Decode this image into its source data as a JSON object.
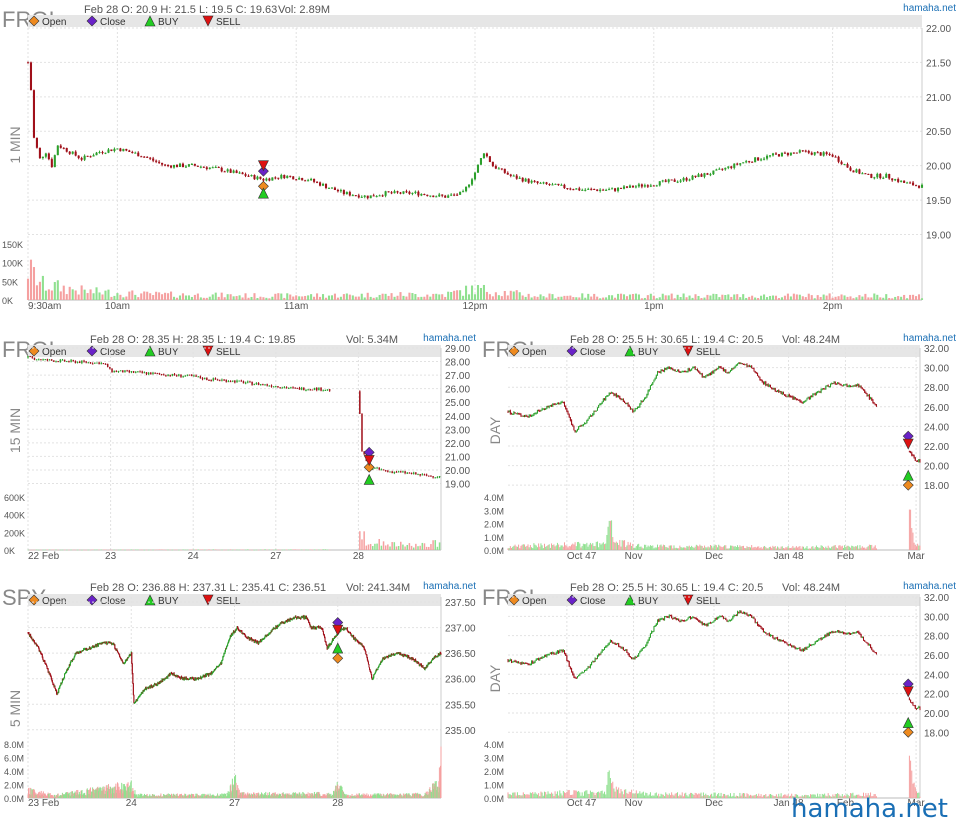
{
  "watermark": "hamaha.net",
  "legend_labels": {
    "open": "Open",
    "close": "Close",
    "buy": "BUY",
    "sell": "SELL"
  },
  "colors": {
    "up": "#2ca02c",
    "down": "#a0101a",
    "vol_up": "#8fe08f",
    "vol_down": "#f5a0a0",
    "open": "#ee8a1f",
    "close": "#6a22c8",
    "buy": "#22cc22",
    "sell": "#dd1111",
    "link": "#1a6fb5"
  },
  "chart_data": [
    {
      "type": "candlestick",
      "symbol": "FRGI",
      "timeframe": "1 MIN",
      "info": {
        "date": "Feb 28",
        "open": "O: 20.9",
        "high": "H: 21.5",
        "low": "L: 19.5",
        "close": "C: 19.63",
        "volume": "Vol: 2.89M"
      },
      "source": "hamaha.net",
      "price_ticks": [
        "22.00",
        "21.50",
        "21.00",
        "20.50",
        "20.00",
        "19.50",
        "19.00"
      ],
      "price_range": [
        18.92,
        22.0
      ],
      "x_ticks": [
        "9:30am",
        "10am",
        "11am",
        "12pm",
        "1pm",
        "2pm"
      ],
      "x_tick_pos": [
        0,
        30,
        90,
        150,
        210,
        270
      ],
      "x_range": [
        0,
        300
      ],
      "volume_ticks": [
        "150K",
        "100K",
        "50K",
        "0K"
      ],
      "volume_max": 150000,
      "price_path": [
        [
          0,
          21.5
        ],
        [
          1,
          21.1
        ],
        [
          2,
          20.4
        ],
        [
          4,
          20.1
        ],
        [
          6,
          20.2
        ],
        [
          8,
          20.0
        ],
        [
          10,
          20.3
        ],
        [
          14,
          20.2
        ],
        [
          18,
          20.1
        ],
        [
          24,
          20.2
        ],
        [
          30,
          20.25
        ],
        [
          38,
          20.15
        ],
        [
          46,
          20.0
        ],
        [
          56,
          20.0
        ],
        [
          64,
          19.95
        ],
        [
          74,
          19.85
        ],
        [
          79,
          19.8
        ],
        [
          86,
          19.85
        ],
        [
          94,
          19.8
        ],
        [
          100,
          19.7
        ],
        [
          106,
          19.6
        ],
        [
          114,
          19.55
        ],
        [
          120,
          19.6
        ],
        [
          130,
          19.6
        ],
        [
          140,
          19.55
        ],
        [
          146,
          19.6
        ],
        [
          150,
          19.9
        ],
        [
          153,
          20.2
        ],
        [
          156,
          20.0
        ],
        [
          162,
          19.85
        ],
        [
          170,
          19.75
        ],
        [
          178,
          19.7
        ],
        [
          186,
          19.65
        ],
        [
          196,
          19.65
        ],
        [
          204,
          19.7
        ],
        [
          212,
          19.75
        ],
        [
          220,
          19.8
        ],
        [
          230,
          19.9
        ],
        [
          240,
          20.05
        ],
        [
          250,
          20.15
        ],
        [
          260,
          20.2
        ],
        [
          270,
          20.15
        ],
        [
          276,
          19.95
        ],
        [
          282,
          19.85
        ],
        [
          288,
          19.85
        ],
        [
          294,
          19.75
        ],
        [
          300,
          19.7
        ]
      ],
      "volume_profile": [
        [
          0,
          110000
        ],
        [
          5,
          55000
        ],
        [
          20,
          30000
        ],
        [
          40,
          20000
        ],
        [
          80,
          15000
        ],
        [
          140,
          20000
        ],
        [
          150,
          40000
        ],
        [
          170,
          15000
        ],
        [
          280,
          15000
        ],
        [
          300,
          15000
        ]
      ],
      "markers": [
        {
          "x": 79,
          "open": 19.7,
          "close": 19.92,
          "buy": 19.6,
          "sell": 20.0
        }
      ]
    },
    {
      "type": "candlestick",
      "symbol": "FRGI",
      "timeframe": "15 MIN",
      "info": {
        "date": "Feb 28",
        "open": "O: 28.35",
        "high": "H: 28.35",
        "low": "L: 19.4",
        "close": "C: 19.85",
        "volume": "Vol: 5.34M"
      },
      "source": "hamaha.net",
      "price_ticks": [
        "29.00",
        "28.00",
        "27.00",
        "26.00",
        "25.00",
        "24.00",
        "23.00",
        "22.00",
        "21.00",
        "20.00",
        "19.00"
      ],
      "price_range": [
        18.3,
        29.0
      ],
      "x_ticks": [
        "22 Feb",
        "23",
        "24",
        "27",
        "28"
      ],
      "x_tick_pos": [
        0,
        23,
        46,
        69,
        92
      ],
      "x_range": [
        0,
        115
      ],
      "volume_ticks": [
        "600K",
        "400K",
        "200K",
        "0K"
      ],
      "volume_max": 700000,
      "price_path": [
        [
          0,
          28.3
        ],
        [
          5,
          28.1
        ],
        [
          12,
          28.0
        ],
        [
          20,
          27.9
        ],
        [
          22,
          27.7
        ],
        [
          23,
          27.3
        ],
        [
          30,
          27.2
        ],
        [
          40,
          27.0
        ],
        [
          46,
          26.9
        ],
        [
          50,
          26.7
        ],
        [
          56,
          26.6
        ],
        [
          62,
          26.4
        ],
        [
          69,
          26.2
        ],
        [
          74,
          26.0
        ],
        [
          80,
          26.0
        ],
        [
          84,
          25.9
        ],
        [
          92,
          25.8
        ],
        [
          93,
          21.4
        ],
        [
          95,
          20.2
        ],
        [
          100,
          19.9
        ],
        [
          105,
          19.8
        ],
        [
          110,
          19.6
        ],
        [
          115,
          19.5
        ]
      ],
      "gap": [
        84,
        92
      ],
      "volume_profile": [
        [
          0,
          5000
        ],
        [
          84,
          8000
        ],
        [
          92,
          600000
        ],
        [
          94,
          180000
        ],
        [
          100,
          100000
        ],
        [
          110,
          80000
        ],
        [
          114,
          120000
        ],
        [
          115,
          130000
        ]
      ],
      "markers": [
        {
          "x": 95,
          "open": 20.2,
          "close": 21.3,
          "buy": 19.3,
          "sell": 20.7
        }
      ]
    },
    {
      "type": "candlestick",
      "symbol": "FRGI",
      "timeframe": "DAY",
      "info": {
        "date": "Feb 28",
        "open": "O: 25.5",
        "high": "H: 30.65",
        "low": "L: 19.4",
        "close": "C: 20.5",
        "volume": "Vol: 48.24M"
      },
      "source": "hamaha.net",
      "price_ticks": [
        "32.00",
        "30.00",
        "28.00",
        "26.00",
        "24.00",
        "22.00",
        "20.00",
        "18.00"
      ],
      "price_range": [
        17.2,
        32.0
      ],
      "x_ticks": [
        "Oct 47",
        "Nov",
        "Dec",
        "Jan 48",
        "Feb",
        "Mar"
      ],
      "x_tick_pos": [
        30,
        64,
        105,
        143,
        172,
        208
      ],
      "x_range": [
        0,
        210
      ],
      "volume_ticks": [
        "4.0M",
        "3.0M",
        "2.0M",
        "1.0M",
        "0.0M"
      ],
      "volume_max": 4200000,
      "price_path": [
        [
          0,
          25.5
        ],
        [
          10,
          25.0
        ],
        [
          20,
          26.0
        ],
        [
          28,
          26.5
        ],
        [
          34,
          23.5
        ],
        [
          40,
          24.5
        ],
        [
          46,
          26.0
        ],
        [
          52,
          27.5
        ],
        [
          58,
          26.8
        ],
        [
          64,
          25.5
        ],
        [
          70,
          27.0
        ],
        [
          76,
          29.5
        ],
        [
          82,
          30.0
        ],
        [
          88,
          29.5
        ],
        [
          95,
          30.0
        ],
        [
          100,
          29.0
        ],
        [
          108,
          30.0
        ],
        [
          112,
          29.5
        ],
        [
          118,
          30.5
        ],
        [
          124,
          30.0
        ],
        [
          130,
          28.5
        ],
        [
          138,
          27.5
        ],
        [
          144,
          27.0
        ],
        [
          150,
          26.5
        ],
        [
          158,
          27.5
        ],
        [
          166,
          28.5
        ],
        [
          172,
          28.2
        ],
        [
          178,
          28.3
        ],
        [
          184,
          27.0
        ],
        [
          188,
          26.0
        ],
        [
          200,
          25.5
        ],
        [
          204,
          21.5
        ],
        [
          208,
          20.5
        ]
      ],
      "gap": [
        188,
        204
      ],
      "volume_profile": [
        [
          0,
          400000
        ],
        [
          50,
          600000
        ],
        [
          52,
          3100000
        ],
        [
          54,
          800000
        ],
        [
          70,
          400000
        ],
        [
          150,
          300000
        ],
        [
          200,
          400000
        ],
        [
          202,
          1200000
        ],
        [
          204,
          3600000
        ],
        [
          208,
          500000
        ],
        [
          210,
          300000
        ]
      ],
      "markers": [
        {
          "x": 204,
          "open": 18.0,
          "close": 23.0,
          "buy": 19.0,
          "sell": 22.2
        }
      ]
    },
    {
      "type": "candlestick",
      "symbol": "SPY",
      "timeframe": "5 MIN",
      "info": {
        "date": "Feb 28",
        "open": "O: 236.88",
        "high": "H: 237.31",
        "low": "L: 235.41",
        "close": "C: 236.51",
        "volume": "Vol: 241.34M"
      },
      "source": "hamaha.net",
      "price_ticks": [
        "237.50",
        "237.00",
        "236.50",
        "236.00",
        "235.50",
        "235.00"
      ],
      "price_range": [
        234.8,
        237.6
      ],
      "x_ticks": [
        "23 Feb",
        "24",
        "27",
        "28"
      ],
      "x_tick_pos": [
        0,
        78,
        156,
        234
      ],
      "x_range": [
        0,
        312
      ],
      "volume_ticks": [
        "8.0M",
        "6.0M",
        "4.0M",
        "2.0M",
        "0.0M"
      ],
      "volume_max": 8500000,
      "price_path": [
        [
          0,
          236.9
        ],
        [
          8,
          236.6
        ],
        [
          16,
          236.1
        ],
        [
          22,
          235.7
        ],
        [
          28,
          236.1
        ],
        [
          36,
          236.5
        ],
        [
          46,
          236.6
        ],
        [
          56,
          236.7
        ],
        [
          64,
          236.7
        ],
        [
          72,
          236.3
        ],
        [
          78,
          236.5
        ],
        [
          80,
          235.5
        ],
        [
          88,
          235.8
        ],
        [
          98,
          235.9
        ],
        [
          108,
          236.1
        ],
        [
          118,
          236.0
        ],
        [
          128,
          236.0
        ],
        [
          138,
          236.1
        ],
        [
          146,
          236.3
        ],
        [
          152,
          236.8
        ],
        [
          158,
          237.0
        ],
        [
          166,
          236.8
        ],
        [
          174,
          236.7
        ],
        [
          182,
          236.9
        ],
        [
          192,
          237.1
        ],
        [
          202,
          237.2
        ],
        [
          210,
          237.2
        ],
        [
          214,
          237.0
        ],
        [
          222,
          237.0
        ],
        [
          226,
          236.6
        ],
        [
          234,
          236.9
        ],
        [
          240,
          237.0
        ],
        [
          246,
          236.8
        ],
        [
          254,
          236.6
        ],
        [
          260,
          236.0
        ],
        [
          268,
          236.4
        ],
        [
          280,
          236.5
        ],
        [
          290,
          236.4
        ],
        [
          300,
          236.2
        ],
        [
          306,
          236.4
        ],
        [
          312,
          236.5
        ]
      ],
      "volume_profile": [
        [
          0,
          1500000
        ],
        [
          20,
          500000
        ],
        [
          78,
          2400000
        ],
        [
          82,
          600000
        ],
        [
          150,
          600000
        ],
        [
          156,
          3800000
        ],
        [
          160,
          800000
        ],
        [
          230,
          800000
        ],
        [
          234,
          2600000
        ],
        [
          240,
          600000
        ],
        [
          300,
          700000
        ],
        [
          310,
          3000000
        ],
        [
          312,
          6800000
        ]
      ],
      "markers": [
        {
          "x": 234,
          "open": 236.4,
          "close": 237.1,
          "buy": 236.6,
          "sell": 236.95
        }
      ]
    },
    {
      "type": "candlestick",
      "symbol": "FRGI",
      "timeframe": "DAY",
      "info": {
        "date": "Feb 28",
        "open": "O: 25.5",
        "high": "H: 30.65",
        "low": "L: 19.4",
        "close": "C: 20.5",
        "volume": "Vol: 48.24M"
      },
      "source": "hamaha.net",
      "price_ticks": [
        "32.00",
        "30.00",
        "28.00",
        "26.00",
        "24.00",
        "22.00",
        "20.00",
        "18.00"
      ],
      "price_range": [
        17.2,
        32.0
      ],
      "x_ticks": [
        "Oct 47",
        "Nov",
        "Dec",
        "Jan 48",
        "Feb",
        "Mar"
      ],
      "x_tick_pos": [
        30,
        64,
        105,
        143,
        172,
        208
      ],
      "x_range": [
        0,
        210
      ],
      "volume_ticks": [
        "4.0M",
        "3.0M",
        "2.0M",
        "1.0M",
        "0.0M"
      ],
      "volume_max": 4200000,
      "price_path": [
        [
          0,
          25.5
        ],
        [
          10,
          25.0
        ],
        [
          20,
          26.0
        ],
        [
          28,
          26.5
        ],
        [
          34,
          23.5
        ],
        [
          40,
          24.5
        ],
        [
          46,
          26.0
        ],
        [
          52,
          27.5
        ],
        [
          58,
          26.8
        ],
        [
          64,
          25.5
        ],
        [
          70,
          27.0
        ],
        [
          76,
          29.5
        ],
        [
          82,
          30.0
        ],
        [
          88,
          29.5
        ],
        [
          95,
          30.0
        ],
        [
          100,
          29.0
        ],
        [
          108,
          30.0
        ],
        [
          112,
          29.5
        ],
        [
          118,
          30.5
        ],
        [
          124,
          30.0
        ],
        [
          130,
          28.5
        ],
        [
          138,
          27.5
        ],
        [
          144,
          27.0
        ],
        [
          150,
          26.5
        ],
        [
          158,
          27.5
        ],
        [
          166,
          28.5
        ],
        [
          172,
          28.2
        ],
        [
          178,
          28.3
        ],
        [
          184,
          27.0
        ],
        [
          188,
          26.0
        ],
        [
          200,
          25.5
        ],
        [
          204,
          21.5
        ],
        [
          208,
          20.5
        ]
      ],
      "gap": [
        188,
        204
      ],
      "volume_profile": [
        [
          0,
          400000
        ],
        [
          50,
          600000
        ],
        [
          52,
          3100000
        ],
        [
          54,
          800000
        ],
        [
          70,
          400000
        ],
        [
          150,
          300000
        ],
        [
          200,
          400000
        ],
        [
          202,
          1200000
        ],
        [
          204,
          3600000
        ],
        [
          208,
          500000
        ],
        [
          210,
          300000
        ]
      ],
      "markers": [
        {
          "x": 204,
          "open": 18.0,
          "close": 23.0,
          "buy": 19.0,
          "sell": 22.2
        }
      ]
    }
  ]
}
